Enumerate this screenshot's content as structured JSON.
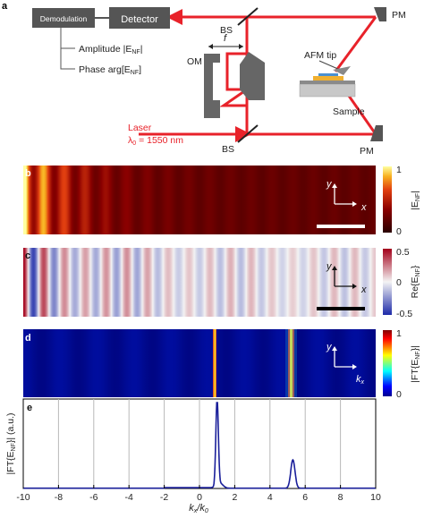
{
  "panel_a": {
    "label": "a",
    "demodulation": "Demodulation",
    "detector": "Detector",
    "amplitude": "Amplitude |E",
    "phase": "Phase arg[E",
    "nf_sub": "NF",
    "close_bar": "|",
    "close_bracket": "]",
    "bs_top": "BS",
    "bs_bottom": "BS",
    "pm_top": "PM",
    "pm_bottom": "PM",
    "om": "OM",
    "f": "f",
    "afm_tip": "AFM tip",
    "sample": "Sample",
    "laser": "Laser",
    "lambda": "λ",
    "lambda_sub": "0",
    "lambda_value": " = 1550 nm",
    "laser_color": "#e8222a"
  },
  "panel_b": {
    "label": "b",
    "axis_y": "y",
    "axis_x": "x",
    "colorbar_max": "1",
    "colorbar_min": "0",
    "colorbar_title": "|E",
    "colorbar_title_sub": "NF",
    "colorbar_title_close": "|"
  },
  "panel_c": {
    "label": "c",
    "axis_y": "y",
    "axis_x": "x",
    "colorbar_max": "0.5",
    "colorbar_mid": "0",
    "colorbar_min": "-0.5",
    "colorbar_title": "Re{E",
    "colorbar_title_sub": "NF",
    "colorbar_title_close": "}"
  },
  "panel_d": {
    "label": "d",
    "axis_y": "y",
    "axis_x": "k",
    "axis_x_sub": "x",
    "colorbar_max": "1",
    "colorbar_min": "0",
    "colorbar_title": "|FT{E",
    "colorbar_title_sub": "NF",
    "colorbar_title_close": "}|"
  },
  "chart_data": {
    "type": "line",
    "panel_label": "e",
    "xlabel": "k",
    "xlabel_sub1": "x",
    "xlabel_mid": "/k",
    "xlabel_sub2": "0",
    "ylabel": "|FT{E",
    "ylabel_sub": "NF",
    "ylabel_close": "}| (a.u.)",
    "xlim": [
      -10,
      10
    ],
    "ylim": [
      0,
      1
    ],
    "xticks": [
      -10,
      -8,
      -6,
      -4,
      -2,
      0,
      2,
      4,
      6,
      8,
      10
    ],
    "grid": true,
    "line_color": "#1a1f9a",
    "peaks": [
      {
        "k": 1.0,
        "value": 1.0
      },
      {
        "k": 5.3,
        "value": 0.33
      }
    ]
  }
}
